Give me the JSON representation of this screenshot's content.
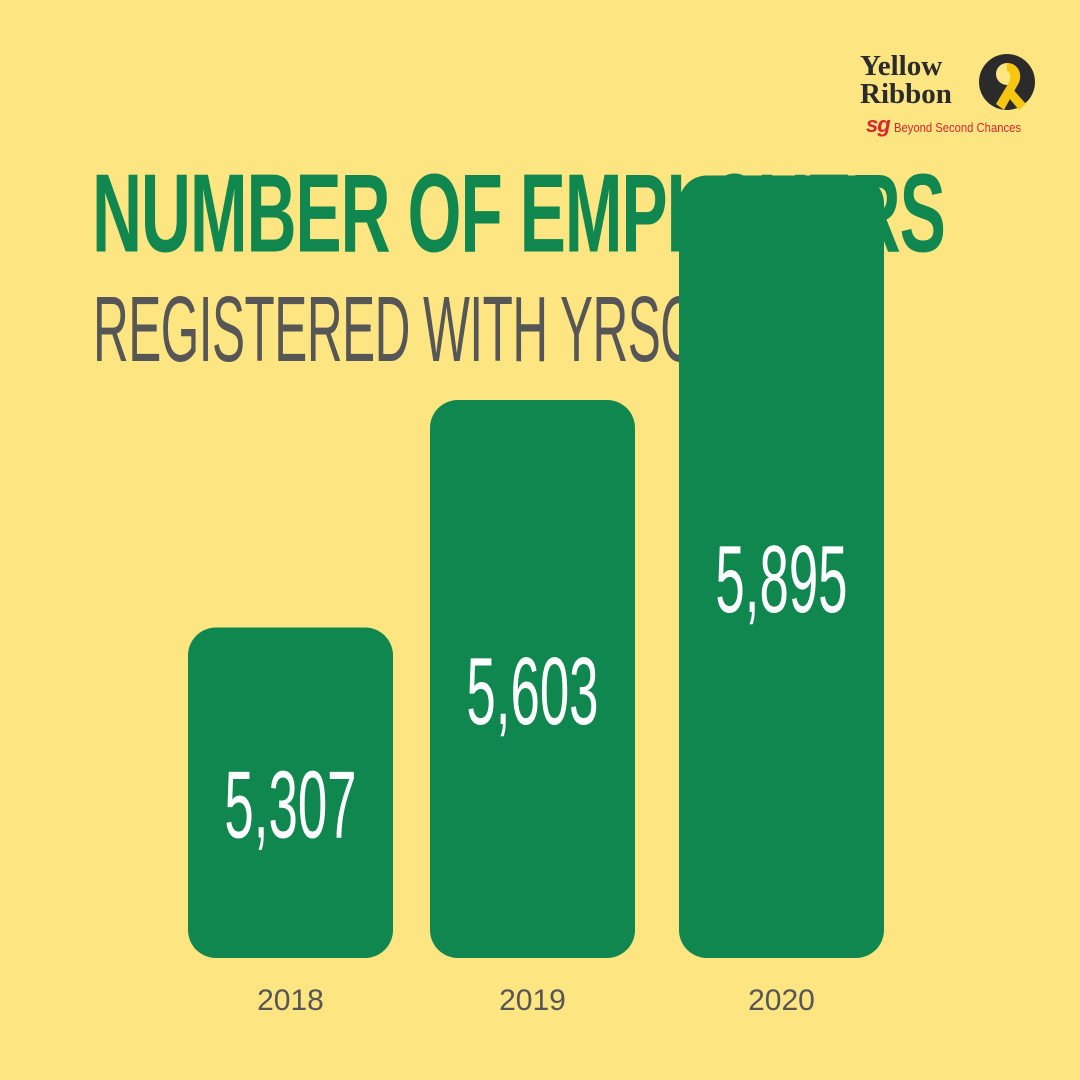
{
  "logo": {
    "line1": "Yellow",
    "line2": "Ribbon",
    "sg": "sg",
    "tagline": "Beyond Second Chances",
    "colors": {
      "text": "#2b2b2b",
      "accent": "#d8262f",
      "ribbon": "#f7c611"
    }
  },
  "colors": {
    "background": "#fde582",
    "bar": "#0f874f",
    "title": "#0f874f",
    "subtitle": "#575656",
    "year_label": "#575656",
    "bar_label": "#ffffff"
  },
  "chart_data": {
    "type": "bar",
    "title": "NUMBER OF EMPLOYERS",
    "subtitle": "REGISTERED WITH YRSG",
    "categories": [
      "2018",
      "2019",
      "2020"
    ],
    "values": [
      5307,
      5603,
      5895
    ],
    "value_labels": [
      "5,307",
      "5,603",
      "5,895"
    ],
    "xlabel": "",
    "ylabel": "",
    "grid": false,
    "legend": "none"
  }
}
